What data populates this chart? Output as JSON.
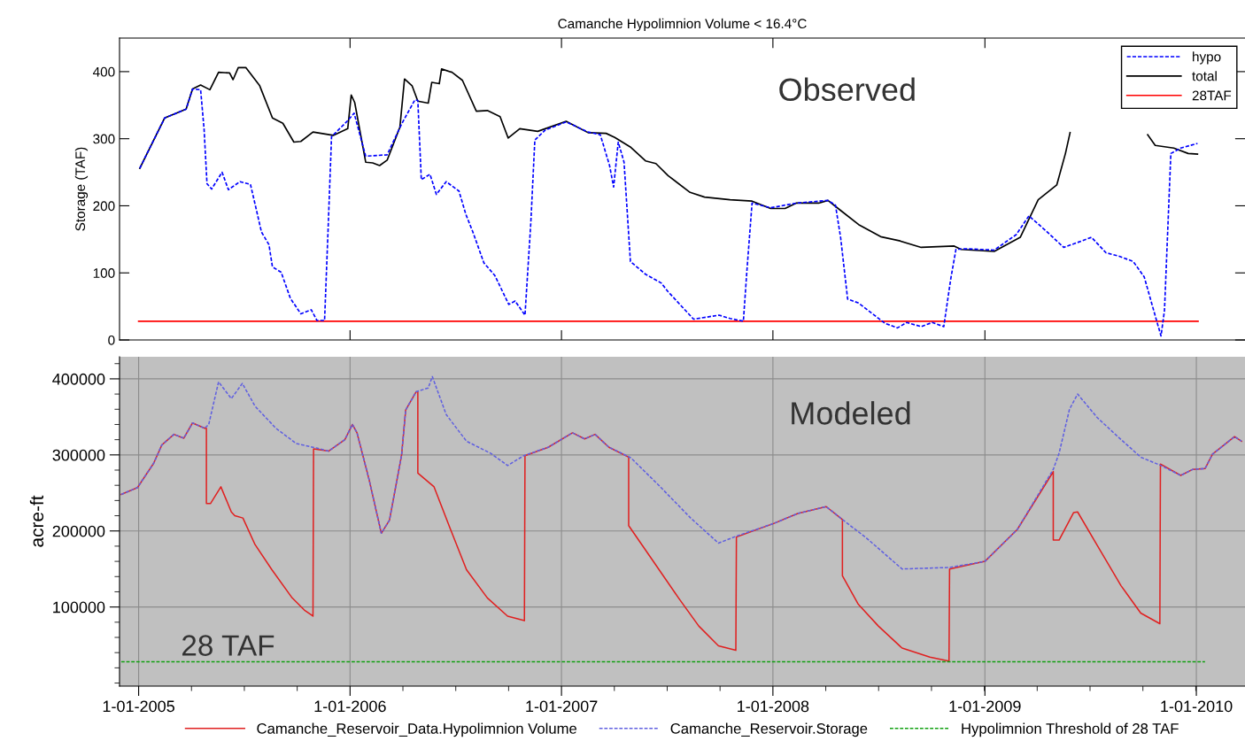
{
  "chart_data": [
    {
      "type": "line",
      "title": "Camanche Hypolimnion Volume < 16.4°C",
      "ylabel": "Storage (TAF)",
      "xlim": [
        "2004-11-29",
        "2010-03-26"
      ],
      "xticks": [
        {
          "value": "2006-01-01",
          "label": null
        },
        {
          "value": "2007-01-01",
          "label": null
        },
        {
          "value": "2008-01-01",
          "label": null
        },
        {
          "value": "2009-01-01",
          "label": null
        }
      ],
      "ylim": [
        0,
        450
      ],
      "yticks": [
        0,
        100,
        200,
        300,
        400
      ],
      "tick_labels": "y",
      "grid": false,
      "legend": "top right",
      "annotations": [
        "Observed"
      ],
      "series": [
        {
          "name": "hypo",
          "color": "#0000ff",
          "line_style": "dashed",
          "x": [
            "2005-01-03",
            "2005-02-15",
            "2005-03-24",
            "2005-04-04",
            "2005-04-18",
            "2005-04-24",
            "2005-04-29",
            "2005-05-07",
            "2005-05-25",
            "2005-06-05",
            "2005-06-25",
            "2005-07-13",
            "2005-07-23",
            "2005-08-01",
            "2005-08-14",
            "2005-08-20",
            "2005-09-04",
            "2005-09-20",
            "2005-10-08",
            "2005-10-26",
            "2005-11-05",
            "2005-11-18",
            "2005-11-24",
            "2005-11-30",
            "2005-12-28",
            "2006-01-08",
            "2006-01-28",
            "2006-03-06",
            "2006-03-31",
            "2006-04-23",
            "2006-04-28",
            "2006-05-04",
            "2006-05-19",
            "2006-05-30",
            "2006-06-16",
            "2006-07-08",
            "2006-07-20",
            "2006-08-01",
            "2006-08-20",
            "2006-09-08",
            "2006-10-02",
            "2006-10-13",
            "2006-10-30",
            "2006-11-09",
            "2006-11-16",
            "2006-12-04",
            "2007-01-09",
            "2007-02-16",
            "2007-03-09",
            "2007-03-25",
            "2007-04-01",
            "2007-04-09",
            "2007-04-19",
            "2007-04-30",
            "2007-05-26",
            "2007-06-22",
            "2007-07-04",
            "2007-08-17",
            "2007-09-30",
            "2007-10-19",
            "2007-11-11",
            "2007-11-17",
            "2007-11-26",
            "2007-12-28",
            "2008-02-10",
            "2008-04-05",
            "2008-04-18",
            "2008-04-27",
            "2008-05-09",
            "2008-05-28",
            "2008-07-12",
            "2008-08-03",
            "2008-08-19",
            "2008-09-13",
            "2008-10-02",
            "2008-10-22",
            "2008-11-03",
            "2008-11-12",
            "2008-11-28",
            "2009-01-17",
            "2009-02-24",
            "2009-03-18",
            "2009-04-16",
            "2009-05-17",
            "2009-06-12",
            "2009-07-04",
            "2009-07-29",
            "2009-08-20",
            "2009-09-14",
            "2009-10-03",
            "2009-10-22",
            "2009-11-01",
            "2009-11-07",
            "2009-11-18",
            "2009-12-05",
            "2010-01-03"
          ],
          "values": [
            256,
            331,
            344,
            374,
            373,
            314,
            233,
            225,
            250,
            224,
            236,
            232,
            195,
            161,
            142,
            109,
            101,
            62,
            39,
            45,
            29,
            29,
            163,
            303,
            327,
            338,
            274,
            276,
            322,
            358,
            357,
            239,
            247,
            217,
            236,
            222,
            187,
            161,
            115,
            96,
            53,
            58,
            37,
            174,
            298,
            313,
            325,
            310,
            306,
            260,
            228,
            295,
            265,
            117,
            98,
            85,
            72,
            31,
            37,
            32,
            28,
            102,
            204,
            197,
            204,
            208,
            201,
            152,
            61,
            55,
            25,
            18,
            26,
            20,
            26,
            20,
            91,
            135,
            136,
            134,
            157,
            185,
            163,
            138,
            146,
            153,
            130,
            125,
            117,
            94,
            36,
            6,
            44,
            278,
            286,
            293
          ]
        },
        {
          "name": "total",
          "color": "#000000",
          "line_style": "solid",
          "x": [
            "2005-01-03",
            "2005-02-15",
            "2005-03-24",
            "2005-04-04",
            "2005-04-18",
            "2005-05-04",
            "2005-05-19",
            "2005-06-07",
            "2005-06-13",
            "2005-06-22",
            "2005-07-05",
            "2005-07-29",
            "2005-08-20",
            "2005-09-07",
            "2005-09-26",
            "2005-10-08",
            "2005-10-29",
            "2005-12-03",
            "2005-12-28",
            "2006-01-03",
            "2006-01-09",
            "2006-01-28",
            "2006-02-09",
            "2006-02-21",
            "2006-03-06",
            "2006-03-28",
            "2006-04-05",
            "2006-04-18",
            "2006-04-28",
            "2006-05-16",
            "2006-05-22",
            "2006-06-04",
            "2006-06-08",
            "2006-06-26",
            "2006-07-14",
            "2006-08-07",
            "2006-08-26",
            "2006-09-17",
            "2006-10-01",
            "2006-10-21",
            "2006-11-21",
            "2007-01-09",
            "2007-02-16",
            "2007-03-19",
            "2007-04-03",
            "2007-05-01",
            "2007-05-26",
            "2007-06-13",
            "2007-07-04",
            "2007-08-11",
            "2007-09-05",
            "2007-10-19",
            "2007-11-26",
            "2007-12-28",
            "2008-01-22",
            "2008-02-10",
            "2008-03-20",
            "2008-04-05",
            "2008-04-27",
            "2008-05-28",
            "2008-07-05",
            "2008-08-06",
            "2008-09-13",
            "2008-11-09",
            "2008-11-21",
            "2009-01-17",
            "2009-03-03",
            "2009-04-03",
            "2009-05-05",
            "2009-05-20",
            "2009-05-28",
            "2009-08-08",
            "2009-10-09",
            "2009-10-22",
            "2009-11-23",
            "2009-12-18",
            "2010-01-03"
          ],
          "values": [
            256,
            331,
            344,
            374,
            380,
            373,
            399,
            398,
            388,
            406,
            406,
            379,
            331,
            323,
            295,
            296,
            310,
            305,
            315,
            365,
            354,
            265,
            264,
            260,
            268,
            317,
            389,
            379,
            356,
            353,
            384,
            382,
            404,
            399,
            387,
            341,
            342,
            333,
            301,
            315,
            311,
            326,
            309,
            308,
            302,
            287,
            267,
            263,
            245,
            220,
            213,
            209,
            207,
            196,
            196,
            204,
            204,
            208,
            193,
            172,
            154,
            148,
            138,
            140,
            135,
            132,
            153,
            209,
            231,
            278,
            309,
            null,
            306,
            290,
            286,
            278,
            277
          ]
        },
        {
          "name": "28TAF",
          "color": "#ff0000",
          "line_style": "solid",
          "x": [
            "2005-01-01",
            "2010-01-04"
          ],
          "values": [
            28,
            28
          ]
        }
      ]
    },
    {
      "type": "line",
      "ylabel": "acre-ft",
      "xlim": [
        "2004-11-29",
        "2010-03-26"
      ],
      "xticks": [
        {
          "value": "2005-01-01",
          "label": "1-01-2005"
        },
        {
          "value": "2006-01-01",
          "label": "1-01-2006"
        },
        {
          "value": "2007-01-01",
          "label": "1-01-2007"
        },
        {
          "value": "2008-01-01",
          "label": "1-01-2008"
        },
        {
          "value": "2009-01-01",
          "label": "1-01-2009"
        },
        {
          "value": "2010-01-01",
          "label": "1-01-2010"
        }
      ],
      "ylim": [
        -4000,
        429000
      ],
      "yticks": [
        100000,
        200000,
        300000,
        400000
      ],
      "grid": true,
      "legend": "bottom",
      "annotations": [
        "Modeled",
        {
          "text": "28 TAF",
          "x": "2005-03-15",
          "y": 28000
        }
      ],
      "series": [
        {
          "name": "Camanche_Reservoir_Data.Hypolimnion Volume",
          "color": "#e02020",
          "line_style": "solid",
          "x": [
            "2004-12-02",
            "2004-12-30",
            "2005-01-27",
            "2005-02-10",
            "2005-03-03",
            "2005-03-20",
            "2005-04-04",
            "2005-04-25",
            "2005-04-28",
            "2005-04-28",
            "2005-05-05",
            "2005-05-23",
            "2005-06-10",
            "2005-06-16",
            "2005-06-30",
            "2005-07-21",
            "2005-08-19",
            "2005-09-23",
            "2005-10-14",
            "2005-10-29",
            "2005-10-30",
            "2005-11-25",
            "2005-12-23",
            "2006-01-05",
            "2006-01-13",
            "2006-02-03",
            "2006-02-24",
            "2006-03-10",
            "2006-03-31",
            "2006-04-07",
            "2006-04-25",
            "2006-04-28",
            "2006-04-28",
            "2006-05-26",
            "2006-06-23",
            "2006-07-21",
            "2006-08-26",
            "2006-09-30",
            "2006-10-29",
            "2006-10-30",
            "2006-12-09",
            "2007-01-20",
            "2007-02-10",
            "2007-02-28",
            "2007-03-24",
            "2007-04-27",
            "2007-04-27",
            "2007-06-04",
            "2007-07-22",
            "2007-08-26",
            "2007-09-29",
            "2007-10-29",
            "2007-10-30",
            "2008-01-03",
            "2008-02-13",
            "2008-04-02",
            "2008-04-30",
            "2008-04-30",
            "2008-05-27",
            "2008-07-01",
            "2008-08-11",
            "2008-09-28",
            "2008-10-31",
            "2008-11-01",
            "2009-01-01",
            "2009-02-26",
            "2009-04-29",
            "2009-04-29",
            "2009-05-09",
            "2009-06-03",
            "2009-06-10",
            "2009-07-14",
            "2009-08-24",
            "2009-09-27",
            "2009-10-30",
            "2009-10-31",
            "2009-12-05",
            "2009-12-26",
            "2010-01-16",
            "2010-01-29",
            "2010-03-08",
            "2010-03-20"
          ],
          "values": [
            248000,
            257000,
            289000,
            313000,
            327000,
            322000,
            342000,
            335000,
            335000,
            236000,
            236000,
            258000,
            225000,
            220000,
            217000,
            182000,
            149000,
            112000,
            96000,
            88000,
            308000,
            305000,
            320000,
            340000,
            329000,
            267000,
            197000,
            214000,
            300000,
            359000,
            383000,
            383000,
            276000,
            258000,
            203000,
            149000,
            112000,
            88000,
            82000,
            299000,
            310000,
            329000,
            321000,
            327000,
            310000,
            297000,
            207000,
            165000,
            112000,
            75000,
            49000,
            43000,
            192000,
            210000,
            223000,
            232000,
            215000,
            141000,
            104000,
            75000,
            46000,
            34000,
            29000,
            150000,
            160000,
            202000,
            278000,
            188000,
            188000,
            224000,
            225000,
            181000,
            128000,
            92000,
            78000,
            288000,
            273000,
            281000,
            282000,
            301000,
            324000,
            318000
          ]
        },
        {
          "name": "Camanche_Reservoir.Storage",
          "color": "#6060e0",
          "line_style": "dashed",
          "x": [
            "2004-12-02",
            "2004-12-30",
            "2005-01-27",
            "2005-02-10",
            "2005-03-03",
            "2005-03-20",
            "2005-04-04",
            "2005-04-25",
            "2005-05-02",
            "2005-05-19",
            "2005-06-10",
            "2005-06-29",
            "2005-07-21",
            "2005-08-26",
            "2005-09-30",
            "2005-11-04",
            "2005-11-25",
            "2005-12-23",
            "2006-01-05",
            "2006-01-13",
            "2006-02-03",
            "2006-02-24",
            "2006-03-10",
            "2006-03-31",
            "2006-04-07",
            "2006-04-25",
            "2006-05-16",
            "2006-05-23",
            "2006-06-16",
            "2006-07-21",
            "2006-09-01",
            "2006-09-30",
            "2006-10-28",
            "2006-12-09",
            "2007-01-20",
            "2007-02-10",
            "2007-02-28",
            "2007-03-24",
            "2007-04-10",
            "2007-05-01",
            "2007-06-18",
            "2007-08-12",
            "2007-09-29",
            "2007-11-02",
            "2008-01-03",
            "2008-02-13",
            "2008-04-02",
            "2008-04-30",
            "2008-06-10",
            "2008-08-11",
            "2008-11-01",
            "2009-01-01",
            "2009-02-26",
            "2009-04-29",
            "2009-05-09",
            "2009-05-27",
            "2009-06-10",
            "2009-07-14",
            "2009-08-17",
            "2009-09-27",
            "2009-11-01",
            "2009-12-05",
            "2009-12-26",
            "2010-01-16",
            "2010-01-29",
            "2010-03-08",
            "2010-03-20"
          ],
          "values": [
            248000,
            257000,
            289000,
            313000,
            327000,
            322000,
            342000,
            335000,
            340000,
            396000,
            374000,
            394000,
            364000,
            335000,
            315000,
            309000,
            305000,
            320000,
            340000,
            329000,
            267000,
            197000,
            214000,
            300000,
            359000,
            383000,
            388000,
            403000,
            353000,
            318000,
            302000,
            286000,
            299000,
            310000,
            329000,
            321000,
            327000,
            310000,
            304000,
            296000,
            260000,
            217000,
            184000,
            194000,
            210000,
            223000,
            232000,
            215000,
            191000,
            150000,
            152000,
            160000,
            202000,
            281000,
            302000,
            360000,
            380000,
            349000,
            325000,
            297000,
            286000,
            273000,
            281000,
            282000,
            301000,
            324000,
            318000
          ]
        },
        {
          "name": "Hypolimnion Threshold of 28 TAF",
          "color": "#10a010",
          "line_style": "dashed",
          "x": [
            "2004-12-02",
            "2010-01-16"
          ],
          "values": [
            28000,
            28000
          ]
        }
      ]
    }
  ]
}
